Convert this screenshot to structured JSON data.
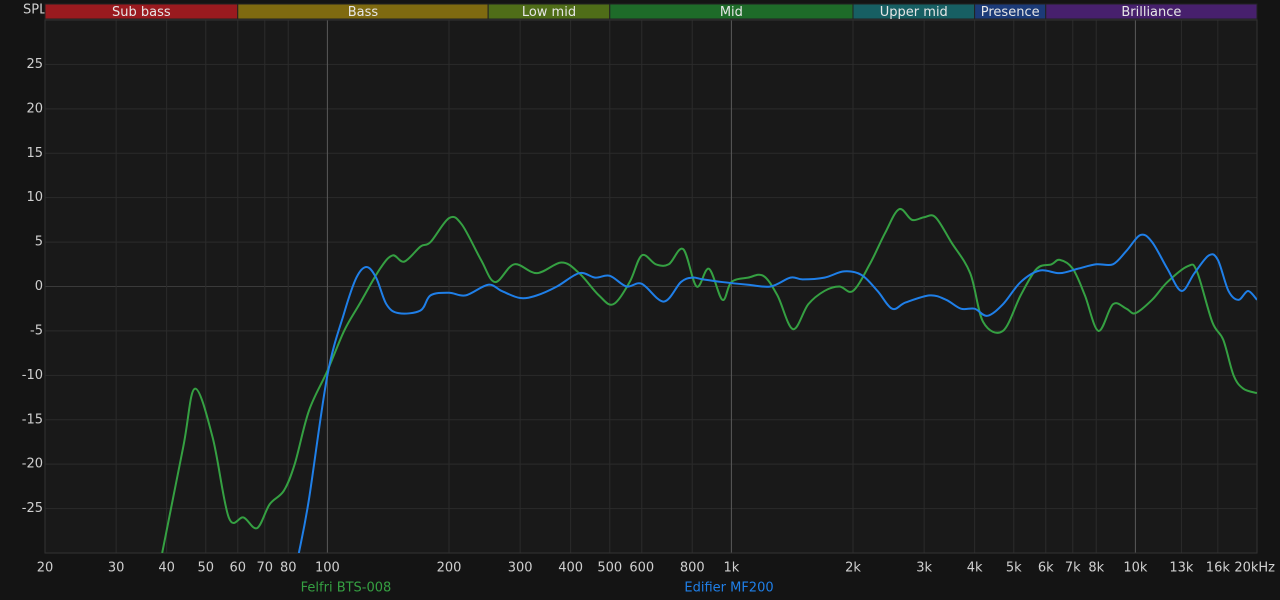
{
  "chart_data": {
    "type": "line",
    "y_label": "SPL",
    "log_x": true,
    "grid": true,
    "xlim": [
      20,
      20000
    ],
    "ylim": [
      -30,
      30
    ],
    "xticks": [
      20,
      30,
      40,
      50,
      60,
      70,
      80,
      100,
      200,
      300,
      400,
      500,
      600,
      800,
      {
        "value": 1000,
        "label": "1k"
      },
      {
        "value": 2000,
        "label": "2k"
      },
      {
        "value": 3000,
        "label": "3k"
      },
      {
        "value": 4000,
        "label": "4k"
      },
      {
        "value": 5000,
        "label": "5k"
      },
      {
        "value": 6000,
        "label": "6k"
      },
      {
        "value": 7000,
        "label": "7k"
      },
      {
        "value": 8000,
        "label": "8k"
      },
      {
        "value": 10000,
        "label": "10k"
      },
      {
        "value": 13000,
        "label": "13k"
      },
      {
        "value": 16000,
        "label": "16k"
      },
      {
        "value": 20000,
        "label": "20kHz"
      }
    ],
    "yticks": [
      -25,
      -20,
      -15,
      -10,
      -5,
      0,
      5,
      10,
      15,
      20,
      25
    ],
    "bands": [
      {
        "name": "Sub bass",
        "from": 20,
        "to": 60,
        "color": "#9a1a1f"
      },
      {
        "name": "Bass",
        "from": 60,
        "to": 250,
        "color": "#7f6a10"
      },
      {
        "name": "Low mid",
        "from": 250,
        "to": 500,
        "color": "#4f6d18"
      },
      {
        "name": "Mid",
        "from": 500,
        "to": 2000,
        "color": "#1e6b29"
      },
      {
        "name": "Upper mid",
        "from": 2000,
        "to": 4000,
        "color": "#175f63"
      },
      {
        "name": "Presence",
        "from": 4000,
        "to": 6000,
        "color": "#1c3b78"
      },
      {
        "name": "Brilliance",
        "from": 6000,
        "to": 20000,
        "color": "#47206d"
      }
    ],
    "series": [
      {
        "name": "Felfri BTS-008",
        "color": "#35a042",
        "x": [
          39,
          44,
          47,
          52,
          57,
          62,
          67,
          72,
          78,
          83,
          90,
          100,
          110,
          120,
          135,
          145,
          155,
          170,
          180,
          200,
          215,
          240,
          260,
          290,
          330,
          380,
          420,
          470,
          510,
          560,
          600,
          650,
          700,
          760,
          820,
          880,
          950,
          1000,
          1100,
          1200,
          1300,
          1420,
          1550,
          1700,
          1850,
          2000,
          2200,
          2400,
          2600,
          2800,
          3000,
          3200,
          3500,
          3900,
          4200,
          4700,
          5200,
          5700,
          6200,
          6500,
          7000,
          7500,
          8100,
          8800,
          9500,
          10000,
          11000,
          12000,
          13500,
          14200,
          15500,
          16500,
          17500,
          18500,
          20000
        ],
        "values": [
          -30,
          -18,
          -11.5,
          -17,
          -26,
          -26,
          -27.2,
          -24.5,
          -23,
          -20,
          -14,
          -9.5,
          -5,
          -2,
          2,
          3.5,
          2.8,
          4.5,
          5,
          7.7,
          7,
          3,
          0.5,
          2.5,
          1.5,
          2.7,
          1.5,
          -1,
          -2,
          0.5,
          3.5,
          2.5,
          2.5,
          4.2,
          0,
          2,
          -1.5,
          0.5,
          1,
          1.2,
          -1,
          -4.8,
          -2,
          -0.5,
          0,
          -0.5,
          2.5,
          6,
          8.7,
          7.5,
          7.8,
          7.8,
          5,
          1.5,
          -4,
          -5,
          -1,
          2,
          2.5,
          3,
          2,
          -1,
          -5,
          -2,
          -2.5,
          -3,
          -1.5,
          0.5,
          2.3,
          1.7,
          -4,
          -6,
          -10,
          -11.5,
          -12
        ]
      },
      {
        "name": "Edifier MF200",
        "color": "#1f7fe8",
        "x": [
          85,
          90,
          100,
          110,
          118,
          125,
          132,
          140,
          150,
          170,
          180,
          200,
          220,
          250,
          270,
          300,
          330,
          370,
          420,
          460,
          500,
          550,
          600,
          680,
          750,
          800,
          850,
          950,
          1100,
          1250,
          1400,
          1500,
          1700,
          1900,
          2100,
          2300,
          2500,
          2700,
          3100,
          3400,
          3700,
          4000,
          4300,
          4700,
          5200,
          5800,
          6500,
          7200,
          8000,
          8800,
          9500,
          10300,
          11000,
          12000,
          13000,
          14000,
          15200,
          16000,
          17000,
          18000,
          19000,
          20000
        ],
        "values": [
          -30,
          -24,
          -10,
          -3,
          1,
          2.2,
          1,
          -2,
          -3,
          -2.7,
          -1,
          -0.7,
          -1,
          0.2,
          -0.5,
          -1.3,
          -1,
          0,
          1.5,
          1,
          1.2,
          0,
          0.3,
          -1.7,
          0.5,
          1,
          0.8,
          0.5,
          0.2,
          0,
          1,
          0.8,
          1,
          1.7,
          1.3,
          -0.5,
          -2.5,
          -1.8,
          -1,
          -1.5,
          -2.5,
          -2.5,
          -3.3,
          -2,
          0.5,
          1.8,
          1.5,
          2,
          2.5,
          2.5,
          4,
          5.8,
          5,
          2,
          -0.5,
          1.5,
          3.5,
          3,
          -0.5,
          -1.5,
          -0.5,
          -1.5
        ]
      }
    ]
  }
}
